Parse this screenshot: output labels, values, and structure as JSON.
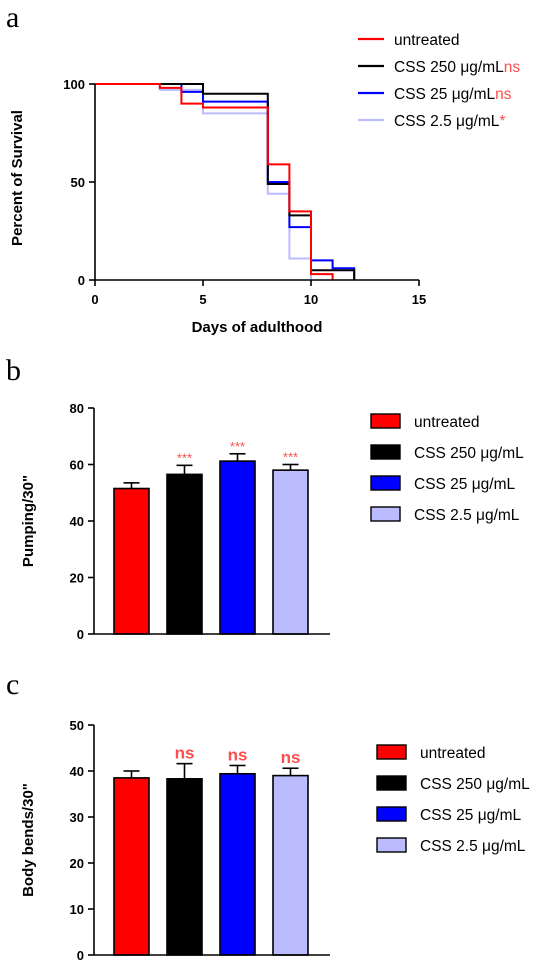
{
  "colors": {
    "untreated": "#ff0000",
    "css250": "#000000",
    "css25": "#0000ff",
    "css2_5": "#bbbbff",
    "significance": "#ff4d4d"
  },
  "chart_data": [
    {
      "panel": "a",
      "type": "line",
      "step": true,
      "xlabel": "Days of adulthood",
      "ylabel": "Percent of Survival",
      "xlim": [
        0,
        15
      ],
      "ylim": [
        0,
        100
      ],
      "xticks": [
        0,
        5,
        10,
        15
      ],
      "yticks": [
        0,
        50,
        100
      ],
      "grid": false,
      "legend_position": "top-right",
      "series": [
        {
          "name": "untreated",
          "sig": "",
          "color_key": "untreated",
          "x": [
            0,
            3,
            4,
            5,
            8,
            9,
            10,
            11
          ],
          "y": [
            100,
            98,
            90,
            88,
            59,
            35,
            3,
            0
          ]
        },
        {
          "name": "CSS 250 μg/mL",
          "sig": "ns",
          "color_key": "css250",
          "x": [
            0,
            5,
            8,
            9,
            10,
            12
          ],
          "y": [
            100,
            95,
            49,
            33,
            5,
            0
          ]
        },
        {
          "name": "CSS 25 μg/mL",
          "sig": "ns",
          "color_key": "css25",
          "x": [
            0,
            4,
            5,
            8,
            9,
            10,
            11,
            12
          ],
          "y": [
            100,
            96,
            91,
            50,
            27,
            10,
            6,
            0
          ]
        },
        {
          "name": "CSS 2.5 μg/mL",
          "sig": "*",
          "color_key": "css2_5",
          "x": [
            0,
            3,
            5,
            8,
            9,
            10
          ],
          "y": [
            100,
            97,
            85,
            44,
            11,
            0
          ]
        }
      ]
    },
    {
      "panel": "b",
      "type": "bar",
      "ylabel": "Pumping/30\"",
      "xlabel": "",
      "ylim": [
        0,
        80
      ],
      "yticks": [
        0,
        20,
        40,
        60,
        80
      ],
      "legend_position": "right",
      "categories": [
        "untreated",
        "CSS 250 μg/mL",
        "CSS 25 μg/mL",
        "CSS 2.5 μg/mL"
      ],
      "values": [
        51.5,
        56.5,
        61.2,
        58.0
      ],
      "errors": [
        2.0,
        3.2,
        2.6,
        2.0
      ],
      "significance": [
        "",
        "***",
        "***",
        "***"
      ],
      "color_keys": [
        "untreated",
        "css250",
        "css25",
        "css2_5"
      ]
    },
    {
      "panel": "c",
      "type": "bar",
      "ylabel": "Body bends/30\"",
      "xlabel": "",
      "ylim": [
        0,
        50
      ],
      "yticks": [
        0,
        10,
        20,
        30,
        40,
        50
      ],
      "legend_position": "right",
      "categories": [
        "untreated",
        "CSS 250 μg/mL",
        "CSS 25 μg/mL",
        "CSS 2.5 μg/mL"
      ],
      "values": [
        38.5,
        38.3,
        39.4,
        39.0
      ],
      "errors": [
        1.5,
        3.3,
        1.8,
        1.6
      ],
      "significance": [
        "",
        "ns",
        "ns",
        "ns"
      ],
      "color_keys": [
        "untreated",
        "css250",
        "css25",
        "css2_5"
      ]
    }
  ]
}
